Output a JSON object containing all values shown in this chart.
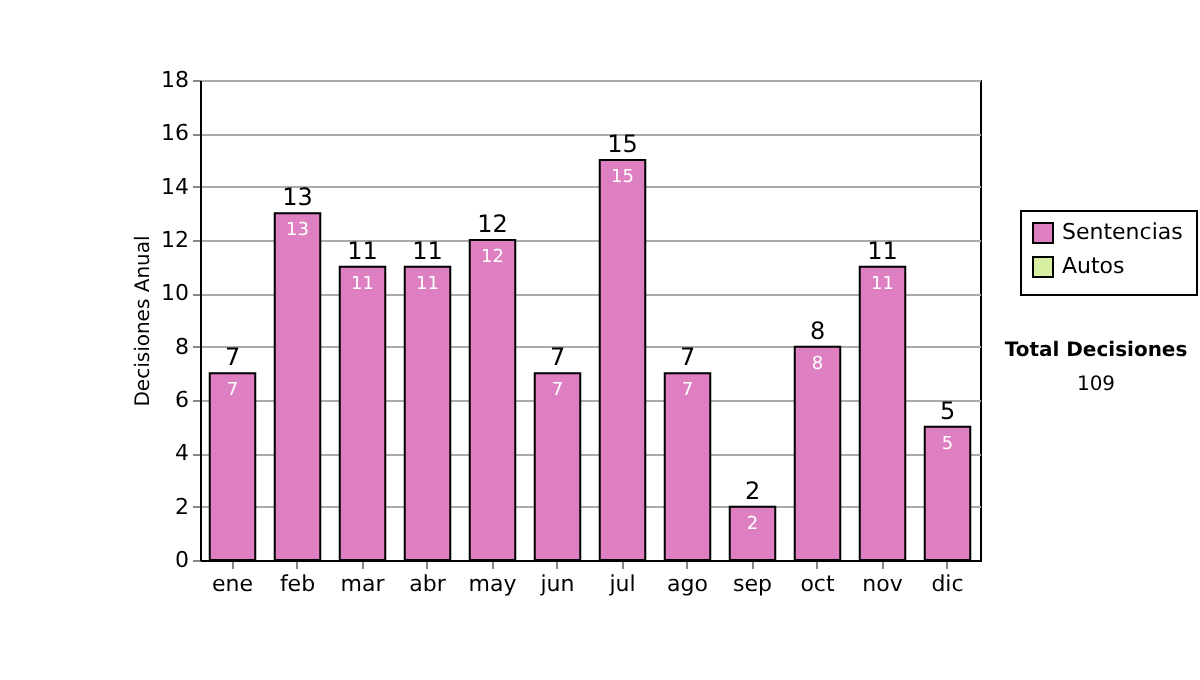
{
  "chart_data": {
    "type": "bar",
    "ylabel": "Decisiones Anual",
    "categories": [
      "ene",
      "feb",
      "mar",
      "abr",
      "may",
      "jun",
      "jul",
      "ago",
      "sep",
      "oct",
      "nov",
      "dic"
    ],
    "series": [
      {
        "name": "Sentencias",
        "color": "#dd7fc0",
        "values": [
          7,
          13,
          11,
          11,
          12,
          7,
          15,
          7,
          2,
          8,
          11,
          5
        ],
        "value_labels": [
          "7",
          "13",
          "11",
          "11",
          "12",
          "7",
          "15",
          "7",
          "2",
          "8",
          "11",
          "5"
        ]
      },
      {
        "name": "Autos",
        "color": "#d8eea0",
        "values": [
          0,
          0,
          0,
          0,
          0,
          0,
          0,
          0,
          0,
          0,
          0,
          0
        ]
      }
    ],
    "stacked": true,
    "totals": [
      "7",
      "13",
      "11",
      "11",
      "12",
      "7",
      "15",
      "7",
      "2",
      "8",
      "11",
      "5"
    ],
    "ylim": [
      0,
      18
    ],
    "yticks": [
      0,
      2,
      4,
      6,
      8,
      10,
      12,
      14,
      16,
      18
    ],
    "grid": "y",
    "legend": "right",
    "annotations": [
      "Total Decisiones",
      "109"
    ]
  }
}
